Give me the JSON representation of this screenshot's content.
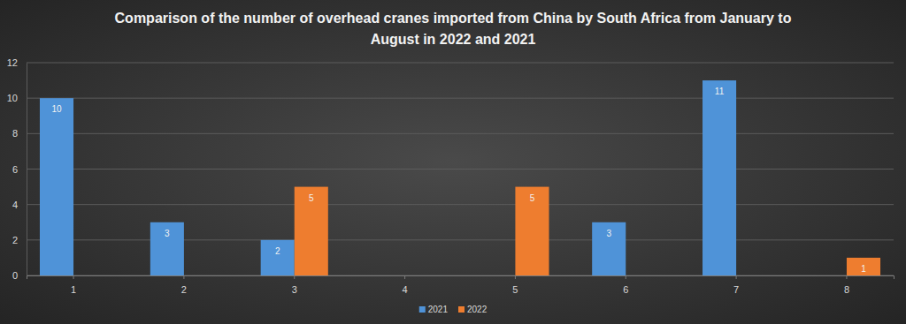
{
  "chart_data": {
    "type": "bar",
    "title": "Comparison of the number of overhead cranes imported from China by South Africa from January to August in 2022 and 2021",
    "categories": [
      "1",
      "2",
      "3",
      "4",
      "5",
      "6",
      "7",
      "8"
    ],
    "series": [
      {
        "name": "2021",
        "color": "#4f93d8",
        "values": [
          10,
          3,
          2,
          null,
          null,
          3,
          11,
          null
        ]
      },
      {
        "name": "2022",
        "color": "#ee7d2f",
        "values": [
          null,
          null,
          5,
          null,
          5,
          null,
          null,
          1
        ]
      }
    ],
    "ylim": [
      0,
      12
    ],
    "yticks": [
      0,
      2,
      4,
      6,
      8,
      10,
      12
    ],
    "grid": true,
    "legend": "bottom",
    "data_labels": true
  }
}
